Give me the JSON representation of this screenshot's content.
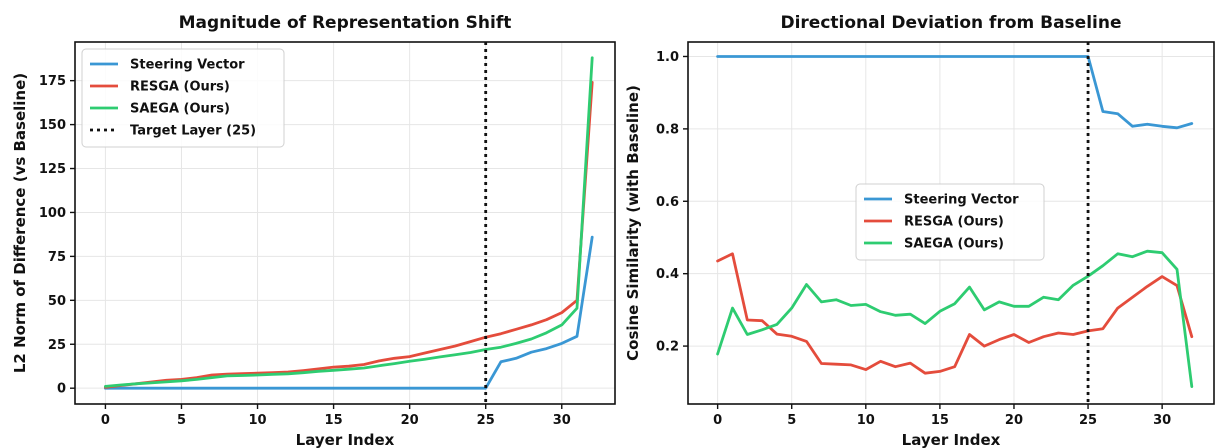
{
  "chart_data": [
    {
      "type": "line",
      "title": "Magnitude of Representation Shift",
      "xlabel": "Layer Index",
      "ylabel": "L2 Norm of Difference (vs Baseline)",
      "xlim": [
        -2,
        33.5
      ],
      "ylim": [
        -9,
        197
      ],
      "xticks": [
        0,
        5,
        10,
        15,
        20,
        25,
        30
      ],
      "yticks": [
        0,
        25,
        50,
        75,
        100,
        125,
        150,
        175
      ],
      "grid": true,
      "legend_position": "top-left",
      "x": [
        0,
        1,
        2,
        3,
        4,
        5,
        6,
        7,
        8,
        9,
        10,
        11,
        12,
        13,
        14,
        15,
        16,
        17,
        18,
        19,
        20,
        21,
        22,
        23,
        24,
        25,
        26,
        27,
        28,
        29,
        30,
        31,
        32
      ],
      "series": [
        {
          "name": "Steering Vector",
          "color": "#3a97d4",
          "values": [
            0,
            0,
            0,
            0,
            0,
            0,
            0,
            0,
            0,
            0,
            0,
            0,
            0,
            0,
            0,
            0,
            0,
            0,
            0,
            0,
            0,
            0,
            0,
            0,
            0,
            0,
            15,
            17,
            20.5,
            22.5,
            25.5,
            29.5,
            86
          ]
        },
        {
          "name": "RESGA (Ours)",
          "color": "#e44c3c",
          "values": [
            0.5,
            1.5,
            2.5,
            3.5,
            4.5,
            5,
            6,
            7.5,
            8,
            8.3,
            8.5,
            8.8,
            9.2,
            10,
            11,
            12,
            12.5,
            13.5,
            15.5,
            17,
            18,
            20,
            22,
            24,
            26.5,
            29,
            31,
            33.5,
            36,
            39,
            43,
            50,
            174
          ]
        },
        {
          "name": "SAEGA (Ours)",
          "color": "#2ecc71",
          "values": [
            1,
            1.8,
            2.5,
            3,
            3.6,
            4.2,
            5,
            6,
            7,
            7.2,
            7.5,
            7.9,
            8.2,
            8.8,
            9.6,
            10.2,
            10.8,
            11.5,
            12.8,
            14,
            15.3,
            16.5,
            17.8,
            19,
            20.3,
            22,
            23.3,
            25.5,
            28,
            31.5,
            36,
            45.5,
            188
          ]
        }
      ],
      "vertical_line": {
        "x": 25,
        "label": "Target Layer (25)",
        "style": "dotted",
        "color": "#111111"
      }
    },
    {
      "type": "line",
      "title": "Directional Deviation from Baseline",
      "xlabel": "Layer Index",
      "ylabel": "Cosine Similarity (with Baseline)",
      "xlim": [
        -2,
        33.5
      ],
      "ylim": [
        0.04,
        1.04
      ],
      "xticks": [
        0,
        5,
        10,
        15,
        20,
        25,
        30
      ],
      "yticks": [
        0.2,
        0.4,
        0.6,
        0.8,
        1.0
      ],
      "ytick_labels": [
        "0.2",
        "0.4",
        "0.6",
        "0.8",
        "1.0"
      ],
      "grid": true,
      "legend_position": "center",
      "x": [
        0,
        1,
        2,
        3,
        4,
        5,
        6,
        7,
        8,
        9,
        10,
        11,
        12,
        13,
        14,
        15,
        16,
        17,
        18,
        19,
        20,
        21,
        22,
        23,
        24,
        25,
        26,
        27,
        28,
        29,
        30,
        31,
        32
      ],
      "series": [
        {
          "name": "Steering Vector",
          "color": "#3a97d4",
          "values": [
            1,
            1,
            1,
            1,
            1,
            1,
            1,
            1,
            1,
            1,
            1,
            1,
            1,
            1,
            1,
            1,
            1,
            1,
            1,
            1,
            1,
            1,
            1,
            1,
            1,
            1,
            0.848,
            0.842,
            0.807,
            0.813,
            0.807,
            0.803,
            0.815
          ]
        },
        {
          "name": "RESGA (Ours)",
          "color": "#e44c3c",
          "values": [
            0.435,
            0.455,
            0.272,
            0.27,
            0.233,
            0.227,
            0.213,
            0.152,
            0.15,
            0.148,
            0.135,
            0.158,
            0.143,
            0.153,
            0.125,
            0.13,
            0.143,
            0.232,
            0.2,
            0.218,
            0.232,
            0.21,
            0.226,
            0.236,
            0.232,
            0.242,
            0.248,
            0.305,
            0.335,
            0.365,
            0.392,
            0.367,
            0.226
          ]
        },
        {
          "name": "SAEGA (Ours)",
          "color": "#2ecc71",
          "values": [
            0.178,
            0.305,
            0.232,
            0.245,
            0.26,
            0.305,
            0.37,
            0.322,
            0.328,
            0.312,
            0.315,
            0.295,
            0.285,
            0.288,
            0.262,
            0.296,
            0.317,
            0.363,
            0.3,
            0.322,
            0.31,
            0.31,
            0.335,
            0.328,
            0.368,
            0.393,
            0.422,
            0.455,
            0.447,
            0.462,
            0.458,
            0.412,
            0.088
          ]
        }
      ],
      "vertical_line": {
        "x": 25,
        "style": "dotted",
        "color": "#111111"
      }
    }
  ]
}
